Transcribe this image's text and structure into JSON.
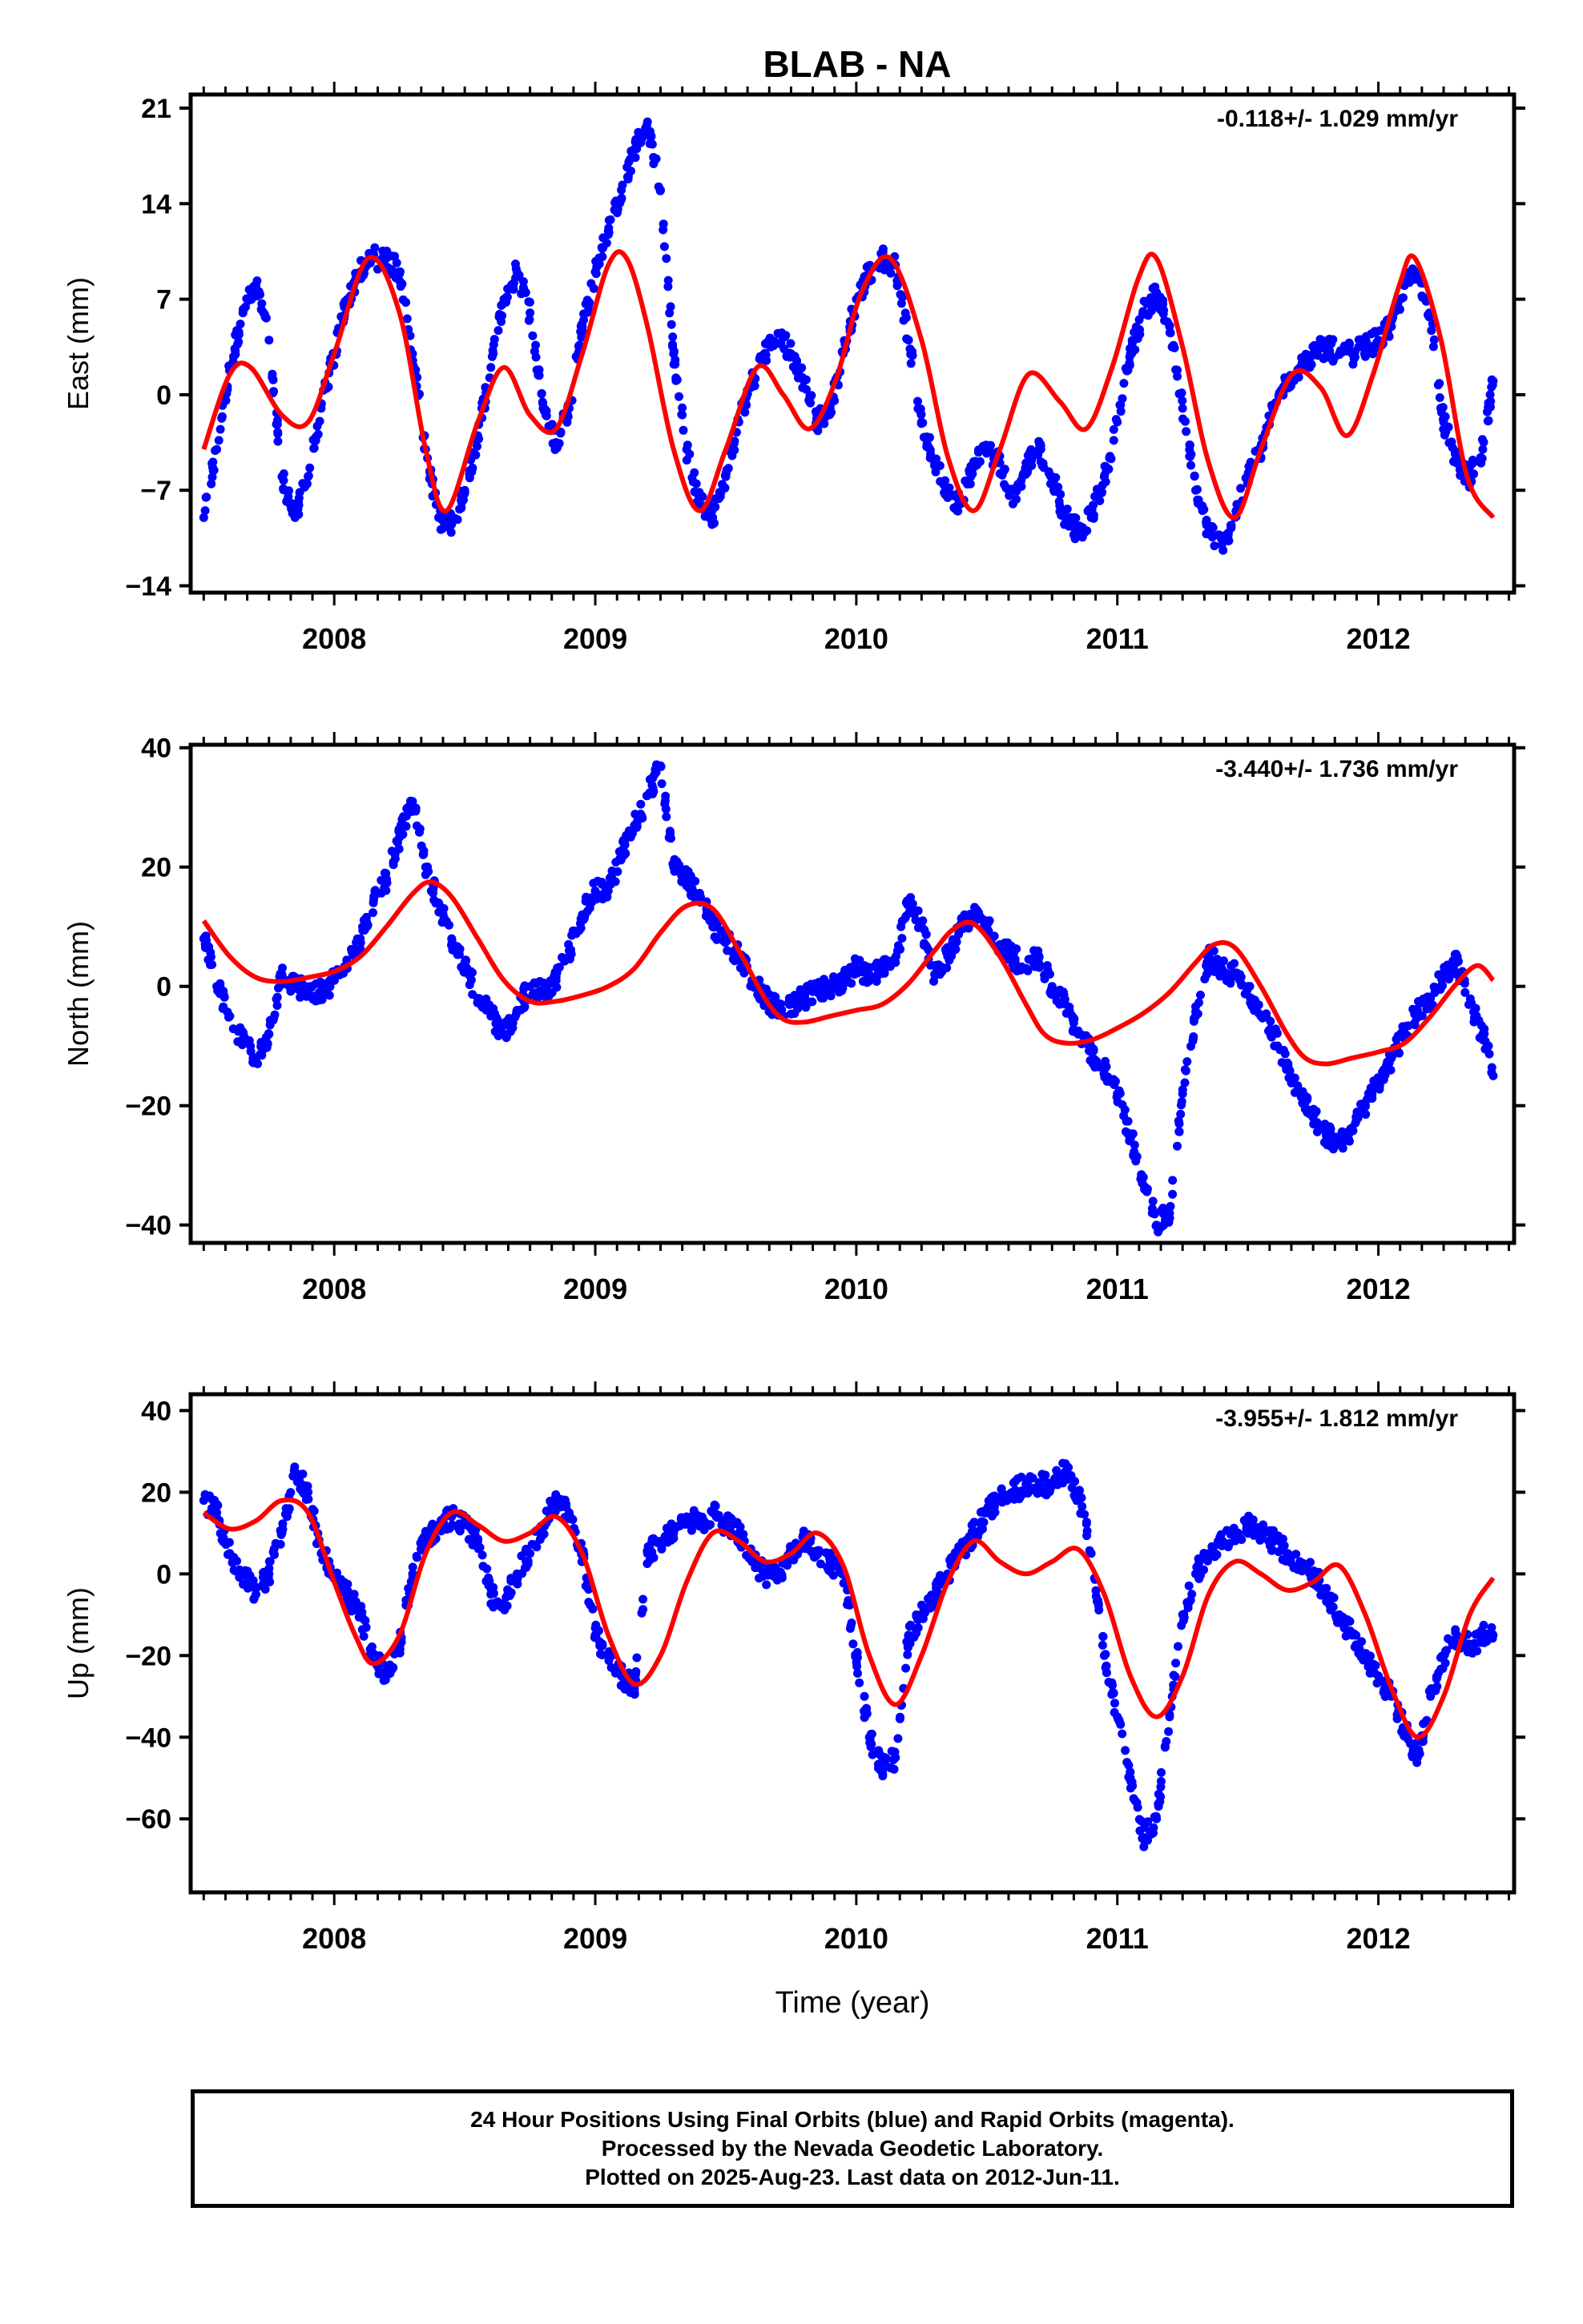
{
  "title": "BLAB - NA",
  "footer": {
    "line1": "24 Hour Positions Using Final Orbits (blue) and Rapid Orbits (magenta).",
    "line2": "Processed by the Nevada Geodetic Laboratory.",
    "line3": "Plotted on 2025-Aug-23. Last data on 2012-Jun-11."
  },
  "colors": {
    "points": "#0000ff",
    "fit": "#ff0000",
    "axis": "#000000"
  },
  "chart_data": [
    {
      "type": "scatter",
      "ylabel": "East (mm)",
      "rate": "-0.118+/- 1.029 mm/yr",
      "xlim": [
        2007.45,
        2012.52
      ],
      "ylim": [
        -14.5,
        22.0
      ],
      "yticks": [
        -14,
        -7,
        0,
        7,
        14,
        21
      ],
      "xticks": [
        2008,
        2009,
        2010,
        2011,
        2012
      ],
      "observations": {
        "x": [
          2007.5,
          2007.55,
          2007.6,
          2007.65,
          2007.7,
          2007.75,
          2007.8,
          2007.85,
          2007.9,
          2007.95,
          2008.0,
          2008.05,
          2008.1,
          2008.15,
          2008.2,
          2008.25,
          2008.3,
          2008.35,
          2008.4,
          2008.45,
          2008.5,
          2008.55,
          2008.6,
          2008.65,
          2008.7,
          2008.75,
          2008.8,
          2008.85,
          2008.9,
          2008.95,
          2009.0,
          2009.05,
          2009.1,
          2009.15,
          2009.2,
          2009.25,
          2009.3,
          2009.35,
          2009.4,
          2009.45,
          2009.5,
          2009.55,
          2009.6,
          2009.65,
          2009.7,
          2009.75,
          2009.8,
          2009.85,
          2009.9,
          2009.95,
          2010.0,
          2010.05,
          2010.1,
          2010.15,
          2010.2,
          2010.25,
          2010.3,
          2010.35,
          2010.4,
          2010.45,
          2010.5,
          2010.55,
          2010.6,
          2010.65,
          2010.7,
          2010.75,
          2010.8,
          2010.85,
          2010.9,
          2010.95,
          2011.0,
          2011.05,
          2011.1,
          2011.15,
          2011.2,
          2011.25,
          2011.3,
          2011.35,
          2011.4,
          2011.45,
          2011.5,
          2011.55,
          2011.6,
          2011.65,
          2011.7,
          2011.75,
          2011.8,
          2011.85,
          2011.9,
          2011.95,
          2012.0,
          2012.05,
          2012.1,
          2012.15,
          2012.2,
          2012.25,
          2012.3,
          2012.35,
          2012.4,
          2012.44
        ],
        "y": [
          -9.0,
          -4.0,
          2.0,
          6.0,
          8.0,
          4.0,
          -6.0,
          -9.0,
          -6.0,
          -1.0,
          3.0,
          7.0,
          9.0,
          10.0,
          10.0,
          9.0,
          3.0,
          -4.0,
          -9.0,
          -9.5,
          -7.0,
          -3.0,
          2.0,
          7.0,
          9.0,
          6.0,
          -1.0,
          -3.5,
          -1.0,
          5.0,
          9.0,
          12.0,
          15.0,
          18.0,
          20.0,
          15.0,
          3.0,
          -4.0,
          -8.0,
          -9.0,
          -6.0,
          -2.0,
          1.0,
          3.0,
          4.5,
          3.0,
          1.0,
          -2.0,
          -1.0,
          3.0,
          7.0,
          9.0,
          10.0,
          9.5,
          4.0,
          -2.0,
          -5.0,
          -7.0,
          -8.0,
          -5.0,
          -4.0,
          -5.0,
          -8.0,
          -5.0,
          -4.0,
          -6.0,
          -9.0,
          -10.0,
          -9.0,
          -6.0,
          -2.0,
          3.0,
          6.0,
          7.5,
          5.0,
          -1.0,
          -7.0,
          -10.0,
          -11.0,
          -9.0,
          -6.0,
          -4.0,
          -1.0,
          1.0,
          2.0,
          3.0,
          3.5,
          3.0,
          3.0,
          3.5,
          4.0,
          5.0,
          8.0,
          9.0,
          6.0,
          -2.0,
          -5.0,
          -6.0,
          -4.0,
          1.0
        ]
      },
      "fit": {
        "x": [
          2007.5,
          2007.6,
          2007.68,
          2007.8,
          2007.9,
          2008.0,
          2008.13,
          2008.25,
          2008.35,
          2008.43,
          2008.55,
          2008.65,
          2008.75,
          2008.85,
          2008.95,
          2009.05,
          2009.12,
          2009.2,
          2009.3,
          2009.4,
          2009.5,
          2009.62,
          2009.72,
          2009.82,
          2009.92,
          2010.02,
          2010.13,
          2010.25,
          2010.35,
          2010.45,
          2010.55,
          2010.66,
          2010.78,
          2010.88,
          2010.98,
          2011.08,
          2011.15,
          2011.25,
          2011.35,
          2011.45,
          2011.55,
          2011.67,
          2011.78,
          2011.88,
          2011.98,
          2012.08,
          2012.14,
          2012.24,
          2012.34,
          2012.44
        ],
        "y": [
          -4.0,
          1.5,
          2.0,
          -1.5,
          -2.0,
          3.0,
          10.0,
          6.0,
          -4.0,
          -8.5,
          -2.0,
          2.0,
          -1.5,
          -2.5,
          3.0,
          9.5,
          10.0,
          5.0,
          -4.0,
          -8.5,
          -4.0,
          2.0,
          0.0,
          -2.5,
          1.0,
          7.5,
          10.0,
          4.0,
          -4.5,
          -8.5,
          -4.0,
          1.5,
          -0.5,
          -2.5,
          2.0,
          8.5,
          10.0,
          3.5,
          -5.0,
          -9.0,
          -4.0,
          1.5,
          0.5,
          -3.0,
          1.5,
          8.0,
          10.0,
          4.0,
          -6.0,
          -9.0
        ]
      }
    },
    {
      "type": "scatter",
      "ylabel": "North (mm)",
      "rate": "-3.440+/- 1.736 mm/yr",
      "xlim": [
        2007.45,
        2012.52
      ],
      "ylim": [
        -43.0,
        40.5
      ],
      "yticks": [
        -40,
        -20,
        0,
        20,
        40
      ],
      "xticks": [
        2008,
        2009,
        2010,
        2011,
        2012
      ],
      "observations": {
        "x": [
          2007.5,
          2007.55,
          2007.6,
          2007.65,
          2007.7,
          2007.75,
          2007.8,
          2007.85,
          2007.9,
          2007.95,
          2008.0,
          2008.05,
          2008.1,
          2008.15,
          2008.2,
          2008.25,
          2008.3,
          2008.35,
          2008.4,
          2008.45,
          2008.5,
          2008.55,
          2008.6,
          2008.65,
          2008.7,
          2008.75,
          2008.8,
          2008.85,
          2008.9,
          2008.95,
          2009.0,
          2009.05,
          2009.1,
          2009.15,
          2009.2,
          2009.25,
          2009.3,
          2009.35,
          2009.4,
          2009.45,
          2009.5,
          2009.55,
          2009.6,
          2009.65,
          2009.7,
          2009.75,
          2009.8,
          2009.85,
          2009.9,
          2009.95,
          2010.0,
          2010.05,
          2010.1,
          2010.15,
          2010.2,
          2010.25,
          2010.3,
          2010.35,
          2010.4,
          2010.45,
          2010.5,
          2010.55,
          2010.6,
          2010.65,
          2010.7,
          2010.75,
          2010.8,
          2010.85,
          2010.9,
          2010.95,
          2011.0,
          2011.05,
          2011.1,
          2011.15,
          2011.2,
          2011.25,
          2011.3,
          2011.35,
          2011.4,
          2011.45,
          2011.5,
          2011.55,
          2011.6,
          2011.65,
          2011.7,
          2011.75,
          2011.8,
          2011.85,
          2011.9,
          2011.95,
          2012.0,
          2012.05,
          2012.1,
          2012.15,
          2012.2,
          2012.25,
          2012.3,
          2012.35,
          2012.4,
          2012.44
        ],
        "y": [
          8.0,
          0.0,
          -5.0,
          -9.0,
          -12.0,
          -8.0,
          2.0,
          0.0,
          -1.0,
          -1.0,
          1.0,
          3.0,
          8.0,
          14.0,
          18.0,
          25.0,
          31.0,
          20.0,
          14.0,
          8.0,
          4.0,
          -2.0,
          -5.0,
          -8.0,
          -4.0,
          0.0,
          -1.0,
          1.0,
          6.0,
          12.0,
          16.0,
          16.0,
          22.0,
          27.0,
          32.0,
          37.0,
          20.0,
          18.0,
          15.0,
          10.0,
          8.0,
          5.0,
          1.0,
          -2.0,
          -4.0,
          -3.0,
          -2.0,
          -1.0,
          0.0,
          1.0,
          3.0,
          2.0,
          3.0,
          4.0,
          14.0,
          10.0,
          2.0,
          5.0,
          10.0,
          12.0,
          10.0,
          7.0,
          5.0,
          3.0,
          5.0,
          0.0,
          -3.0,
          -8.0,
          -11.0,
          -14.0,
          -18.0,
          -25.0,
          -32.0,
          -40.0,
          -38.0,
          -18.0,
          -5.0,
          5.0,
          3.0,
          2.0,
          0.0,
          -5.0,
          -8.0,
          -13.0,
          -18.0,
          -22.0,
          -25.0,
          -26.0,
          -24.0,
          -20.0,
          -16.0,
          -12.0,
          -8.0,
          -4.0,
          -2.0,
          2.0,
          4.0,
          -3.0,
          -8.0,
          -15.0
        ]
      },
      "fit": {
        "x": [
          2007.5,
          2007.6,
          2007.7,
          2007.8,
          2007.9,
          2008.0,
          2008.1,
          2008.2,
          2008.3,
          2008.37,
          2008.45,
          2008.55,
          2008.65,
          2008.75,
          2008.85,
          2008.95,
          2009.05,
          2009.15,
          2009.25,
          2009.35,
          2009.45,
          2009.55,
          2009.65,
          2009.72,
          2009.8,
          2009.9,
          2010.0,
          2010.1,
          2010.2,
          2010.3,
          2010.37,
          2010.45,
          2010.55,
          2010.65,
          2010.72,
          2010.8,
          2010.9,
          2011.0,
          2011.1,
          2011.2,
          2011.3,
          2011.37,
          2011.45,
          2011.55,
          2011.65,
          2011.72,
          2011.8,
          2011.9,
          2012.0,
          2012.1,
          2012.2,
          2012.3,
          2012.38,
          2012.44
        ],
        "y": [
          11.0,
          5.0,
          1.5,
          0.8,
          1.5,
          2.5,
          5.0,
          10.0,
          15.5,
          17.5,
          15.0,
          8.0,
          1.0,
          -2.5,
          -2.5,
          -1.5,
          0.0,
          3.0,
          9.0,
          13.5,
          13.0,
          6.0,
          -2.0,
          -5.5,
          -6.0,
          -5.0,
          -4.0,
          -3.0,
          0.5,
          6.0,
          9.5,
          10.5,
          5.0,
          -3.0,
          -8.0,
          -9.5,
          -9.0,
          -7.0,
          -4.5,
          -1.0,
          4.0,
          7.0,
          6.5,
          0.0,
          -8.0,
          -12.0,
          -13.0,
          -12.0,
          -11.0,
          -9.5,
          -5.0,
          0.5,
          3.5,
          1.0
        ]
      }
    },
    {
      "type": "scatter",
      "ylabel": "Up (mm)",
      "xlabel": "Time (year)",
      "rate": "-3.955+/- 1.812 mm/yr",
      "xlim": [
        2007.45,
        2012.52
      ],
      "ylim": [
        -78.0,
        44.0
      ],
      "yticks": [
        -60,
        -40,
        -20,
        0,
        20,
        40
      ],
      "xticks": [
        2008,
        2009,
        2010,
        2011,
        2012
      ],
      "observations": {
        "x": [
          2007.5,
          2007.55,
          2007.6,
          2007.65,
          2007.7,
          2007.75,
          2007.8,
          2007.85,
          2007.9,
          2007.95,
          2008.0,
          2008.05,
          2008.1,
          2008.15,
          2008.2,
          2008.25,
          2008.3,
          2008.35,
          2008.4,
          2008.45,
          2008.5,
          2008.55,
          2008.6,
          2008.65,
          2008.7,
          2008.75,
          2008.8,
          2008.85,
          2008.9,
          2008.95,
          2009.0,
          2009.05,
          2009.1,
          2009.15,
          2009.2,
          2009.25,
          2009.3,
          2009.35,
          2009.4,
          2009.45,
          2009.5,
          2009.55,
          2009.6,
          2009.65,
          2009.7,
          2009.75,
          2009.8,
          2009.85,
          2009.9,
          2009.95,
          2010.0,
          2010.05,
          2010.1,
          2010.15,
          2010.2,
          2010.25,
          2010.3,
          2010.35,
          2010.4,
          2010.45,
          2010.5,
          2010.55,
          2010.6,
          2010.65,
          2010.7,
          2010.75,
          2010.8,
          2010.85,
          2010.9,
          2010.95,
          2011.0,
          2011.05,
          2011.1,
          2011.15,
          2011.2,
          2011.25,
          2011.3,
          2011.35,
          2011.4,
          2011.45,
          2011.5,
          2011.55,
          2011.6,
          2011.65,
          2011.7,
          2011.75,
          2011.8,
          2011.85,
          2011.9,
          2011.95,
          2012.0,
          2012.05,
          2012.1,
          2012.15,
          2012.2,
          2012.25,
          2012.3,
          2012.35,
          2012.4,
          2012.44
        ],
        "y": [
          18.0,
          15.0,
          5.0,
          0.0,
          -5.0,
          0.0,
          10.0,
          25.0,
          20.0,
          5.0,
          0.0,
          -5.0,
          -10.0,
          -20.0,
          -25.0,
          -18.0,
          0.0,
          8.0,
          12.0,
          14.0,
          12.0,
          8.0,
          -5.0,
          -8.0,
          0.0,
          5.0,
          12.0,
          18.0,
          15.0,
          5.0,
          -15.0,
          -20.0,
          -25.0,
          -28.0,
          5.0,
          8.0,
          10.0,
          14.0,
          12.0,
          15.0,
          12.0,
          10.0,
          3.0,
          0.0,
          0.0,
          5.0,
          8.0,
          5.0,
          3.0,
          0.0,
          -20.0,
          -40.0,
          -48.0,
          -45.0,
          -15.0,
          -10.0,
          -5.0,
          0.0,
          5.0,
          10.0,
          15.0,
          18.0,
          20.0,
          22.0,
          22.0,
          22.0,
          25.0,
          20.0,
          5.0,
          -20.0,
          -35.0,
          -50.0,
          -65.0,
          -60.0,
          -35.0,
          -10.0,
          0.0,
          5.0,
          8.0,
          10.0,
          12.0,
          10.0,
          8.0,
          5.0,
          3.0,
          0.0,
          -5.0,
          -10.0,
          -15.0,
          -20.0,
          -25.0,
          -30.0,
          -38.0,
          -45.0,
          -30.0,
          -20.0,
          -15.0,
          -18.0,
          -15.0,
          -15.0
        ]
      },
      "fit": {
        "x": [
          2007.5,
          2007.6,
          2007.7,
          2007.8,
          2007.9,
          2008.0,
          2008.08,
          2008.15,
          2008.25,
          2008.35,
          2008.45,
          2008.55,
          2008.65,
          2008.75,
          2008.85,
          2008.95,
          2009.05,
          2009.15,
          2009.25,
          2009.35,
          2009.45,
          2009.55,
          2009.65,
          2009.75,
          2009.85,
          2009.95,
          2010.05,
          2010.15,
          2010.25,
          2010.35,
          2010.45,
          2010.55,
          2010.65,
          2010.75,
          2010.85,
          2010.95,
          2011.05,
          2011.15,
          2011.25,
          2011.35,
          2011.45,
          2011.55,
          2011.65,
          2011.75,
          2011.85,
          2011.95,
          2012.05,
          2012.15,
          2012.25,
          2012.35,
          2012.44
        ],
        "y": [
          15.0,
          11.0,
          13.0,
          18.0,
          15.0,
          -2.0,
          -15.0,
          -22.0,
          -15.0,
          5.0,
          15.0,
          12.0,
          8.0,
          10.0,
          14.0,
          5.0,
          -15.0,
          -27.0,
          -20.0,
          -2.0,
          10.0,
          8.0,
          3.0,
          5.0,
          10.0,
          2.0,
          -20.0,
          -32.0,
          -20.0,
          -2.0,
          8.0,
          3.0,
          0.0,
          3.0,
          6.0,
          -5.0,
          -25.0,
          -35.0,
          -25.0,
          -5.0,
          3.0,
          0.0,
          -4.0,
          -2.0,
          2.0,
          -10.0,
          -28.0,
          -40.0,
          -30.0,
          -10.0,
          -1.0
        ]
      }
    }
  ]
}
